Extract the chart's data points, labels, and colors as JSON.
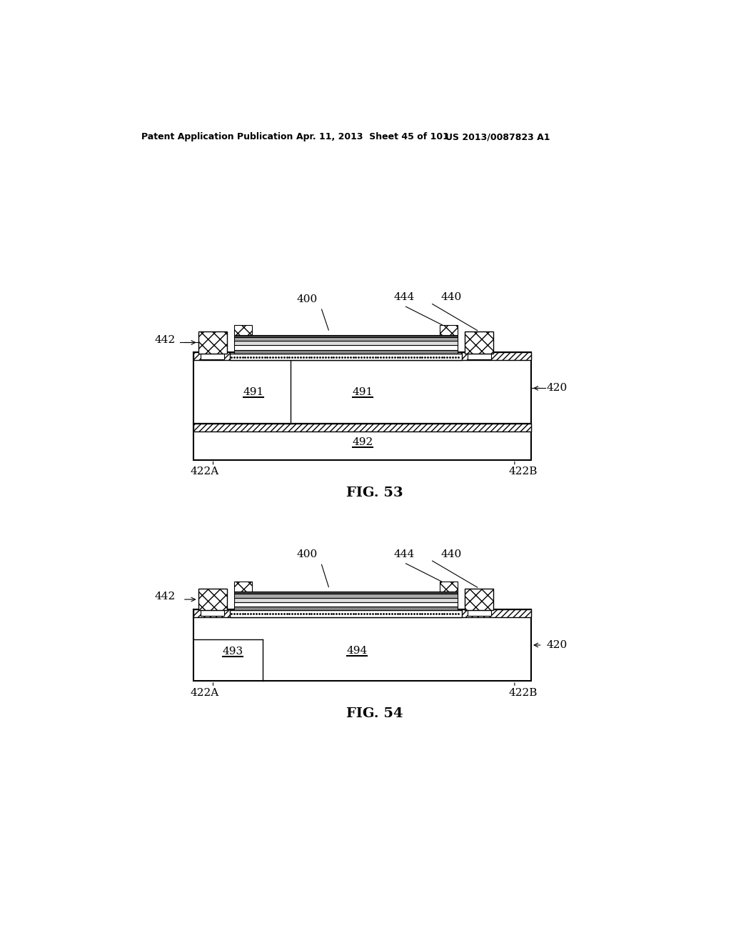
{
  "background_color": "#ffffff",
  "header_text": "Patent Application Publication",
  "header_date": "Apr. 11, 2013  Sheet 45 of 101",
  "header_patent": "US 2013/0087823 A1",
  "fig53_label": "FIG. 53",
  "fig54_label": "FIG. 54"
}
